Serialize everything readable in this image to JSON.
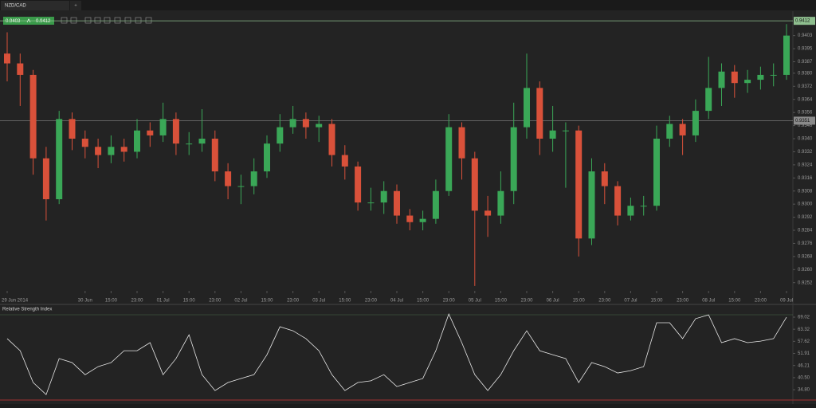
{
  "tab": "NZD/CAD",
  "new_tab": "+",
  "quote": {
    "bid": "0.9403",
    "ask": "0.9412"
  },
  "chart_data": [
    {
      "type": "candlestick",
      "open": [
        0.9392,
        0.9386,
        0.9379,
        0.9328,
        0.9303,
        0.9352,
        0.934,
        0.9335,
        0.933,
        0.9335,
        0.9332,
        0.9345,
        0.9342,
        0.9352,
        0.9337,
        0.9337,
        0.934,
        0.932,
        0.9311,
        0.9311,
        0.932,
        0.9337,
        0.9347,
        0.9352,
        0.9347,
        0.9349,
        0.933,
        0.9323,
        0.9301,
        0.9301,
        0.9308,
        0.9293,
        0.9289,
        0.9291,
        0.9308,
        0.9347,
        0.9328,
        0.9296,
        0.9293,
        0.9308,
        0.9347,
        0.9371,
        0.934,
        0.9345,
        0.9345,
        0.9279,
        0.932,
        0.9311,
        0.9293,
        0.9299,
        0.9299,
        0.934,
        0.9349,
        0.9342,
        0.9357,
        0.9371,
        0.9381,
        0.9374,
        0.9376,
        0.9379,
        0.9379
      ],
      "high": [
        0.9405,
        0.9392,
        0.9382,
        0.9335,
        0.9357,
        0.9356,
        0.9345,
        0.934,
        0.9342,
        0.934,
        0.9352,
        0.935,
        0.9362,
        0.9356,
        0.9344,
        0.9358,
        0.9345,
        0.9325,
        0.9318,
        0.9328,
        0.9342,
        0.9355,
        0.936,
        0.9356,
        0.9354,
        0.9352,
        0.9336,
        0.9326,
        0.931,
        0.9314,
        0.9312,
        0.9297,
        0.9296,
        0.9315,
        0.9355,
        0.935,
        0.9332,
        0.9305,
        0.932,
        0.9362,
        0.9392,
        0.9375,
        0.936,
        0.935,
        0.9348,
        0.9328,
        0.9325,
        0.9314,
        0.9304,
        0.9305,
        0.9348,
        0.9354,
        0.9352,
        0.9364,
        0.939,
        0.9386,
        0.9385,
        0.9382,
        0.9384,
        0.9386,
        0.941
      ],
      "low": [
        0.9375,
        0.936,
        0.9318,
        0.929,
        0.93,
        0.9333,
        0.9328,
        0.9322,
        0.9325,
        0.9326,
        0.9328,
        0.9335,
        0.9338,
        0.933,
        0.933,
        0.9332,
        0.9314,
        0.9303,
        0.93,
        0.9306,
        0.9316,
        0.9332,
        0.9343,
        0.934,
        0.9338,
        0.9323,
        0.9315,
        0.9296,
        0.9296,
        0.9294,
        0.9288,
        0.9284,
        0.9284,
        0.9288,
        0.9305,
        0.9315,
        0.925,
        0.928,
        0.9288,
        0.93,
        0.934,
        0.933,
        0.9332,
        0.931,
        0.9268,
        0.9275,
        0.93,
        0.9287,
        0.929,
        0.9293,
        0.9296,
        0.9335,
        0.933,
        0.9338,
        0.9352,
        0.936,
        0.9365,
        0.9368,
        0.937,
        0.9372,
        0.9376
      ],
      "close": [
        0.9386,
        0.9379,
        0.9328,
        0.9303,
        0.9352,
        0.934,
        0.9335,
        0.933,
        0.9335,
        0.9332,
        0.9345,
        0.9342,
        0.9352,
        0.9337,
        0.9337,
        0.934,
        0.932,
        0.9311,
        0.9311,
        0.932,
        0.9337,
        0.9347,
        0.9352,
        0.9347,
        0.9349,
        0.933,
        0.9323,
        0.9301,
        0.9301,
        0.9308,
        0.9293,
        0.9289,
        0.9291,
        0.9308,
        0.9347,
        0.9328,
        0.9296,
        0.9293,
        0.9308,
        0.9347,
        0.9371,
        0.934,
        0.9345,
        0.9345,
        0.9279,
        0.932,
        0.9311,
        0.9293,
        0.9299,
        0.9299,
        0.934,
        0.9349,
        0.9342,
        0.9357,
        0.9371,
        0.9381,
        0.9374,
        0.9376,
        0.9379,
        0.9379,
        0.9403
      ],
      "up_color": "#3aa757",
      "down_color": "#d9513a",
      "ylim": [
        0.9247,
        0.9415
      ],
      "yticks": [
        0.9403,
        0.9395,
        0.9387,
        {
          "value": 0.938,
          "label": "0.9380"
        },
        0.9372,
        0.9364,
        0.9356,
        0.9348,
        {
          "value": 0.934,
          "label": "0.9340"
        },
        0.9332,
        0.9324,
        0.9316,
        0.9308,
        {
          "value": 0.93,
          "label": "0.9300"
        },
        0.9292,
        0.9284,
        0.9276,
        0.9268,
        {
          "value": 0.926,
          "label": "0.9260"
        },
        0.9252
      ],
      "xticks": [
        {
          "value": 0,
          "label": "29 Jun 2014"
        },
        {
          "value": 6,
          "label": "30 Jun"
        },
        {
          "value": 8,
          "label": "15:00"
        },
        {
          "value": 10,
          "label": "23:00"
        },
        {
          "value": 12,
          "label": "01 Jul"
        },
        {
          "value": 14,
          "label": "15:00"
        },
        {
          "value": 16,
          "label": "23:00"
        },
        {
          "value": 18,
          "label": "02 Jul"
        },
        {
          "value": 20,
          "label": "15:00"
        },
        {
          "value": 22,
          "label": "23:00"
        },
        {
          "value": 24,
          "label": "03 Jul"
        },
        {
          "value": 26,
          "label": "15:00"
        },
        {
          "value": 28,
          "label": "23:00"
        },
        {
          "value": 30,
          "label": "04 Jul"
        },
        {
          "value": 32,
          "label": "15:00"
        },
        {
          "value": 34,
          "label": "23:00"
        },
        {
          "value": 36,
          "label": "05 Jul"
        },
        {
          "value": 38,
          "label": "15:00"
        },
        {
          "value": 40,
          "label": "23:00"
        },
        {
          "value": 42,
          "label": "06 Jul"
        },
        {
          "value": 44,
          "label": "15:00"
        },
        {
          "value": 46,
          "label": "23:00"
        },
        {
          "value": 48,
          "label": "07 Jul"
        },
        {
          "value": 50,
          "label": "15:00"
        },
        {
          "value": 52,
          "label": "23:00"
        },
        {
          "value": 54,
          "label": "08 Jul"
        },
        {
          "value": 56,
          "label": "15:00"
        },
        {
          "value": 58,
          "label": "23:00"
        },
        {
          "value": 60,
          "label": "09 Jul"
        }
      ],
      "price_lines": [
        {
          "value": 0.9412,
          "color": "#8fbf8f"
        },
        {
          "value": 0.9351,
          "color": "#8a8a8a"
        }
      ]
    },
    {
      "type": "line",
      "title": "Relative Strength Index",
      "color": "#e8e8e8",
      "values": [
        58.9,
        53.2,
        38.2,
        32.5,
        49.5,
        47.6,
        41.9,
        45.7,
        47.6,
        53.2,
        53.2,
        57.0,
        41.9,
        49.5,
        60.7,
        41.9,
        34.4,
        38.2,
        40.1,
        41.9,
        51.3,
        64.5,
        62.6,
        58.9,
        53.2,
        41.9,
        34.4,
        38.2,
        39.0,
        41.9,
        36.3,
        38.2,
        40.1,
        53.2,
        70.5,
        57.0,
        41.9,
        34.4,
        41.9,
        53.2,
        62.6,
        53.2,
        51.3,
        49.5,
        38.2,
        47.6,
        45.7,
        42.7,
        43.8,
        45.7,
        66.4,
        66.4,
        58.9,
        68.3,
        70.1,
        57.0,
        58.9,
        57.0,
        57.7,
        58.9,
        69.0
      ],
      "ylim": [
        30.7,
        70.9
      ],
      "yticks": [
        69.02,
        63.32,
        57.62,
        51.91,
        46.21,
        {
          "value": 40.5,
          "label": "40.50"
        },
        {
          "value": 34.8,
          "label": "34.80"
        }
      ]
    }
  ]
}
